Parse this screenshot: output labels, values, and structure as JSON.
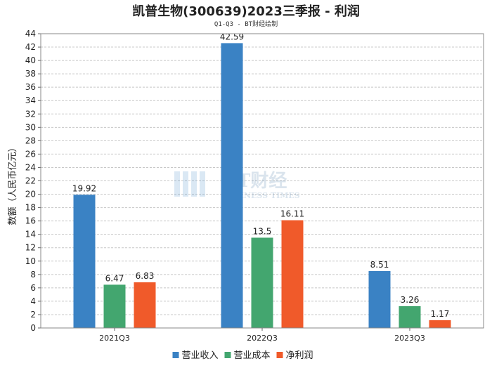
{
  "title": "凯普生物(300639)2023三季报 - 利润",
  "subtitle": "Q1-Q3 - BT财经绘制",
  "watermark": {
    "main": "BT财经",
    "sub": "BUSINESS TIMES"
  },
  "chart_data": {
    "type": "bar",
    "categories": [
      "2021Q3",
      "2022Q3",
      "2023Q3"
    ],
    "series": [
      {
        "name": "营业收入",
        "color": "#3a82c4",
        "values": [
          19.92,
          42.59,
          8.51
        ]
      },
      {
        "name": "营业成本",
        "color": "#43a66f",
        "values": [
          6.47,
          13.5,
          3.26
        ]
      },
      {
        "name": "净利润",
        "color": "#f05a2a",
        "values": [
          6.83,
          16.11,
          1.17
        ]
      }
    ],
    "value_labels": [
      [
        "19.92",
        "42.59",
        "8.51"
      ],
      [
        "6.47",
        "13.5",
        "3.26"
      ],
      [
        "6.83",
        "16.11",
        "1.17"
      ]
    ],
    "ylabel": "数额（人民币亿元）",
    "ylim": [
      0,
      44
    ],
    "yticks": [
      0,
      2,
      4,
      6,
      8,
      10,
      12,
      14,
      16,
      18,
      20,
      22,
      24,
      26,
      28,
      30,
      32,
      34,
      36,
      38,
      40,
      42,
      44
    ],
    "grid": true,
    "legend_position": "bottom-center"
  }
}
